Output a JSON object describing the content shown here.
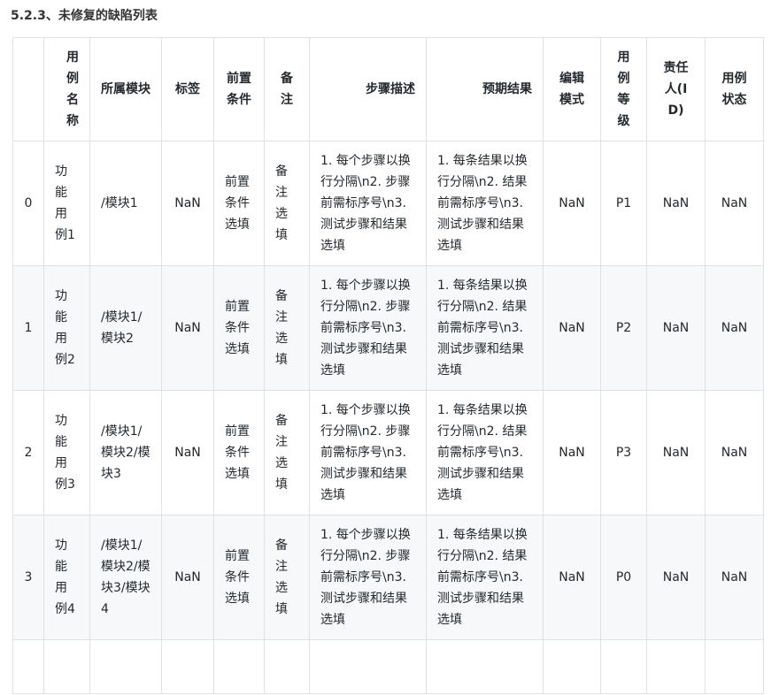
{
  "title": "5.2.3、未修复的缺陷列表",
  "headers": [
    "",
    "用例名称",
    "所属模块",
    "标签",
    "前置条件",
    "备注",
    "步骤描述",
    "预期结果",
    "编辑模式",
    "用例等级",
    "责任人(ID)",
    "用例状态"
  ],
  "rows": [
    [
      "0",
      "功能用例1",
      "/模块1",
      "NaN",
      "前置条件选填",
      "备注选填",
      "1. 每个步骤以换行分隔\\n2. 步骤前需标序号\\n3. 测试步骤和结果选填",
      "1. 每条结果以换行分隔\\n2. 结果前需标序号\\n3. 测试步骤和结果选填",
      "NaN",
      "P1",
      "NaN",
      "NaN"
    ],
    [
      "1",
      "功能用例2",
      "/模块1/模块2",
      "NaN",
      "前置条件选填",
      "备注选填",
      "1. 每个步骤以换行分隔\\n2. 步骤前需标序号\\n3. 测试步骤和结果选填",
      "1. 每条结果以换行分隔\\n2. 结果前需标序号\\n3. 测试步骤和结果选填",
      "NaN",
      "P2",
      "NaN",
      "NaN"
    ],
    [
      "2",
      "功能用例3",
      "/模块1/模块2/模块3",
      "NaN",
      "前置条件选填",
      "备注选填",
      "1. 每个步骤以换行分隔\\n2. 步骤前需标序号\\n3. 测试步骤和结果选填",
      "1. 每条结果以换行分隔\\n2. 结果前需标序号\\n3. 测试步骤和结果选填",
      "NaN",
      "P3",
      "NaN",
      "NaN"
    ],
    [
      "3",
      "功能用例4",
      "/模块1/模块2/模块3/模块4",
      "NaN",
      "前置条件选填",
      "备注选填",
      "1. 每个步骤以换行分隔\\n2. 步骤前需标序号\\n3. 测试步骤和结果选填",
      "1. 每条结果以换行分隔\\n2. 结果前需标序号\\n3. 测试步骤和结果选填",
      "NaN",
      "P0",
      "NaN",
      "NaN"
    ]
  ]
}
